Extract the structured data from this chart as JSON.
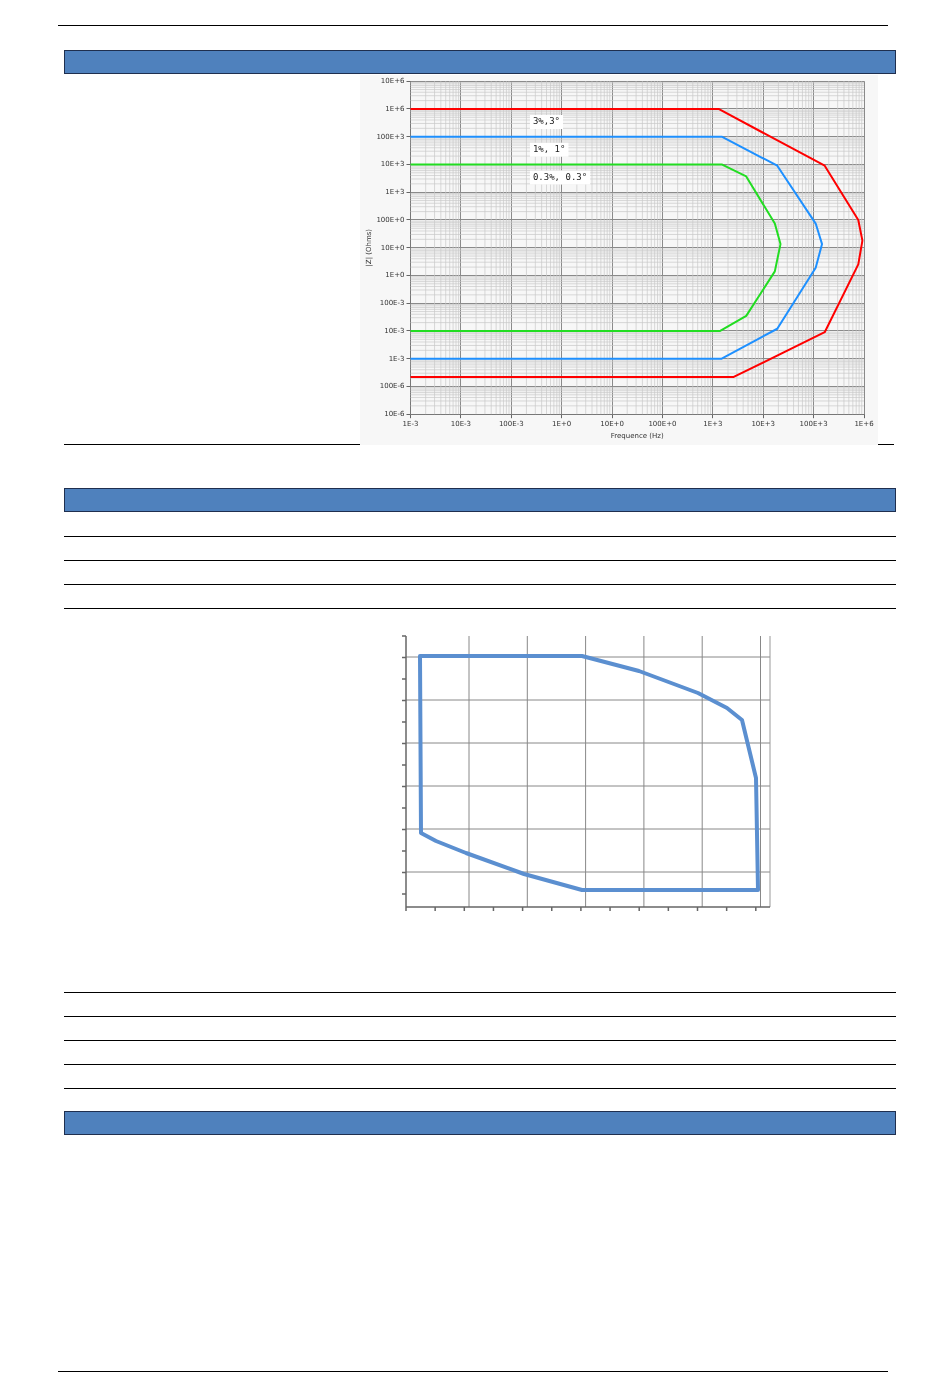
{
  "chart_data": {
    "type": "line",
    "xlabel": "Frequence (Hz)",
    "ylabel": "|Z| (Ohms)",
    "log": "xy",
    "grid": true,
    "legend": false,
    "marker": "none",
    "line_style": "solid",
    "xlim": [
      0.001,
      1000000
    ],
    "xticks": [
      {
        "value": 0.001,
        "label": "1E-3"
      },
      {
        "value": 0.01,
        "label": "10E-3"
      },
      {
        "value": 0.1,
        "label": "100E-3"
      },
      {
        "value": 1,
        "label": "1E+0"
      },
      {
        "value": 10,
        "label": "10E+0"
      },
      {
        "value": 100,
        "label": "100E+0"
      },
      {
        "value": 1000,
        "label": "1E+3"
      },
      {
        "value": 10000,
        "label": "10E+3"
      },
      {
        "value": 100000,
        "label": "100E+3"
      },
      {
        "value": 1000000,
        "label": "1E+6"
      }
    ],
    "ylim": [
      1e-05,
      10000000
    ],
    "yticks": [
      {
        "value": 1e-05,
        "label": "10E-6"
      },
      {
        "value": 0.0001,
        "label": "100E-6"
      },
      {
        "value": 0.001,
        "label": "1E-3"
      },
      {
        "value": 0.01,
        "label": "10E-3"
      },
      {
        "value": 0.1,
        "label": "100E-3"
      },
      {
        "value": 1,
        "label": "1E+0"
      },
      {
        "value": 10,
        "label": "10E+0"
      },
      {
        "value": 100,
        "label": "100E+0"
      },
      {
        "value": 1000,
        "label": "1E+3"
      },
      {
        "value": 10000,
        "label": "10E+3"
      },
      {
        "value": 100000,
        "label": "100E+3"
      },
      {
        "value": 1000000,
        "label": "1E+6"
      },
      {
        "value": 10000000,
        "label": "10E+6"
      }
    ],
    "series": [
      {
        "name": "3%,3°",
        "color": "#ff0000",
        "x": [
          0.001,
          1300,
          166000,
          770000,
          930000,
          770000,
          166000,
          2600,
          0.001
        ],
        "values": [
          1000000,
          1000000,
          9000,
          100,
          18,
          2.5,
          0.009,
          0.00022,
          0.00022
        ]
      },
      {
        "name": "1%, 1°",
        "color": "#1e90ff",
        "x": [
          0.001,
          1500,
          19000,
          110000,
          147000,
          110000,
          19000,
          1500,
          0.001
        ],
        "values": [
          100000,
          100000,
          9000,
          74,
          13.5,
          1.9,
          0.012,
          0.001,
          0.001
        ]
      },
      {
        "name": "0.3%, 0.3°",
        "color": "#22dd22",
        "x": [
          0.001,
          1500,
          4600,
          17000,
          22000,
          17000,
          4600,
          1400,
          0.001
        ],
        "values": [
          10000,
          10000,
          3700,
          74,
          13.5,
          1.4,
          0.035,
          0.01,
          0.01
        ]
      }
    ]
  }
}
